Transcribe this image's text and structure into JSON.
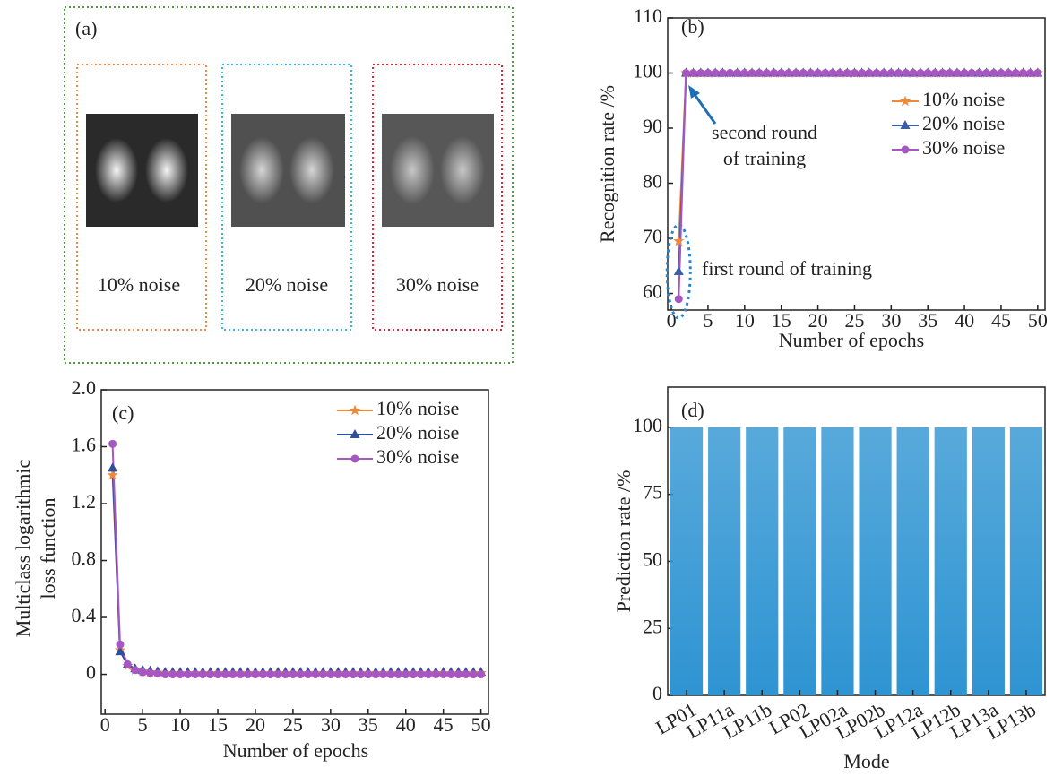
{
  "panel_a": {
    "label": "(a)",
    "captions": [
      "10% noise",
      "20% noise",
      "30% noise"
    ]
  },
  "chart_data": [
    {
      "type": "line",
      "panel_label": "(b)",
      "xlabel": "Number of epochs",
      "ylabel": "Recognition rate /%",
      "x": [
        1,
        2,
        3,
        4,
        5,
        6,
        7,
        8,
        9,
        10,
        11,
        12,
        13,
        14,
        15,
        16,
        17,
        18,
        19,
        20,
        21,
        22,
        23,
        24,
        25,
        26,
        27,
        28,
        29,
        30,
        31,
        32,
        33,
        34,
        35,
        36,
        37,
        38,
        39,
        40,
        41,
        42,
        43,
        44,
        45,
        46,
        47,
        48,
        49,
        50
      ],
      "xlim": [
        -0.5,
        51
      ],
      "xticks": [
        0,
        5,
        10,
        15,
        20,
        25,
        30,
        35,
        40,
        45,
        50
      ],
      "ylim": [
        57,
        110
      ],
      "yticks": [
        60,
        70,
        80,
        90,
        100,
        110
      ],
      "legend": "upper right",
      "annotations": [
        "second round",
        "of training",
        "first round of training"
      ],
      "series": [
        {
          "name": "10% noise",
          "color": "#f0883a",
          "marker": "star",
          "values": [
            69.5,
            100,
            100,
            100,
            100,
            100,
            100,
            100,
            100,
            100,
            100,
            100,
            100,
            100,
            100,
            100,
            100,
            100,
            100,
            100,
            100,
            100,
            100,
            100,
            100,
            100,
            100,
            100,
            100,
            100,
            100,
            100,
            100,
            100,
            100,
            100,
            100,
            100,
            100,
            100,
            100,
            100,
            100,
            100,
            100,
            100,
            100,
            100,
            100,
            100
          ]
        },
        {
          "name": "20% noise",
          "color": "#3b5ea6",
          "marker": "triangle",
          "values": [
            64,
            100,
            100,
            100,
            100,
            100,
            100,
            100,
            100,
            100,
            100,
            100,
            100,
            100,
            100,
            100,
            100,
            100,
            100,
            100,
            100,
            100,
            100,
            100,
            100,
            100,
            100,
            100,
            100,
            100,
            100,
            100,
            100,
            100,
            100,
            100,
            100,
            100,
            100,
            100,
            100,
            100,
            100,
            100,
            100,
            100,
            100,
            100,
            100,
            100
          ]
        },
        {
          "name": "30% noise",
          "color": "#a657c2",
          "marker": "circle",
          "values": [
            59,
            100,
            100,
            100,
            100,
            100,
            100,
            100,
            100,
            100,
            100,
            100,
            100,
            100,
            100,
            100,
            100,
            100,
            100,
            100,
            100,
            100,
            100,
            100,
            100,
            100,
            100,
            100,
            100,
            100,
            100,
            100,
            100,
            100,
            100,
            100,
            100,
            100,
            100,
            100,
            100,
            100,
            100,
            100,
            100,
            100,
            100,
            100,
            100,
            100
          ]
        }
      ]
    },
    {
      "type": "line",
      "panel_label": "(c)",
      "xlabel": "Number of epochs",
      "ylabel": [
        "Multiclass logarithmic",
        "loss function"
      ],
      "x": [
        1,
        2,
        3,
        4,
        5,
        6,
        7,
        8,
        9,
        10,
        11,
        12,
        13,
        14,
        15,
        16,
        17,
        18,
        19,
        20,
        21,
        22,
        23,
        24,
        25,
        26,
        27,
        28,
        29,
        30,
        31,
        32,
        33,
        34,
        35,
        36,
        37,
        38,
        39,
        40,
        41,
        42,
        43,
        44,
        45,
        46,
        47,
        48,
        49,
        50
      ],
      "xlim": [
        -0.5,
        51
      ],
      "xticks": [
        0,
        5,
        10,
        15,
        20,
        25,
        30,
        35,
        40,
        45,
        50
      ],
      "ylim": [
        -0.28,
        2.0
      ],
      "yticks": [
        0,
        0.4,
        0.8,
        1.2,
        1.6,
        {
          "value": 2,
          "label": "2.0"
        }
      ],
      "legend": "upper right",
      "series": [
        {
          "name": "10% noise",
          "color": "#f0883a",
          "marker": "star",
          "values": [
            1.4,
            0.17,
            0.06,
            0.03,
            0.02,
            0.015,
            0.012,
            0.01,
            0.01,
            0.01,
            0.01,
            0.01,
            0.01,
            0.01,
            0.01,
            0.01,
            0.01,
            0.01,
            0.01,
            0.01,
            0.01,
            0.01,
            0.01,
            0.01,
            0.01,
            0.01,
            0.01,
            0.01,
            0.01,
            0.01,
            0.01,
            0.01,
            0.01,
            0.01,
            0.01,
            0.01,
            0.01,
            0.01,
            0.01,
            0.01,
            0.01,
            0.01,
            0.01,
            0.01,
            0.01,
            0.01,
            0.01,
            0.01,
            0.01,
            0.01
          ]
        },
        {
          "name": "20% noise",
          "color": "#2f4f9a",
          "marker": "triangle",
          "values": [
            1.45,
            0.16,
            0.07,
            0.04,
            0.03,
            0.025,
            0.02,
            0.015,
            0.015,
            0.015,
            0.015,
            0.015,
            0.015,
            0.015,
            0.015,
            0.015,
            0.015,
            0.015,
            0.015,
            0.015,
            0.015,
            0.015,
            0.015,
            0.015,
            0.015,
            0.015,
            0.015,
            0.015,
            0.015,
            0.015,
            0.015,
            0.015,
            0.015,
            0.015,
            0.015,
            0.015,
            0.015,
            0.015,
            0.015,
            0.015,
            0.015,
            0.015,
            0.015,
            0.015,
            0.015,
            0.015,
            0.015,
            0.015,
            0.015,
            0.015
          ]
        },
        {
          "name": "30% noise",
          "color": "#a657c2",
          "marker": "circle",
          "values": [
            1.62,
            0.21,
            0.07,
            0.03,
            0.015,
            0.01,
            0.005,
            0,
            0,
            0,
            0,
            0,
            0,
            0,
            0,
            0,
            0,
            0,
            0,
            0,
            0,
            0,
            0,
            0,
            0,
            0,
            0,
            0,
            0,
            0,
            0,
            0,
            0,
            0,
            0,
            0,
            0,
            0,
            0,
            0,
            0,
            0,
            0,
            0,
            0,
            0,
            0,
            0,
            0,
            0
          ]
        }
      ]
    },
    {
      "type": "bar",
      "panel_label": "(d)",
      "xlabel": "Mode",
      "ylabel": "Prediction rate /%",
      "categories": [
        "LP01",
        "LP11a",
        "LP11b",
        "LP02",
        "LP02a",
        "LP02b",
        "LP12a",
        "LP12b",
        "LP13a",
        "LP13b"
      ],
      "values": [
        100,
        100,
        100,
        100,
        100,
        100,
        100,
        100,
        100,
        100
      ],
      "color": "#2e94d2",
      "ylim": [
        0,
        115
      ],
      "yticks": [
        0,
        25,
        50,
        75,
        100
      ]
    }
  ]
}
